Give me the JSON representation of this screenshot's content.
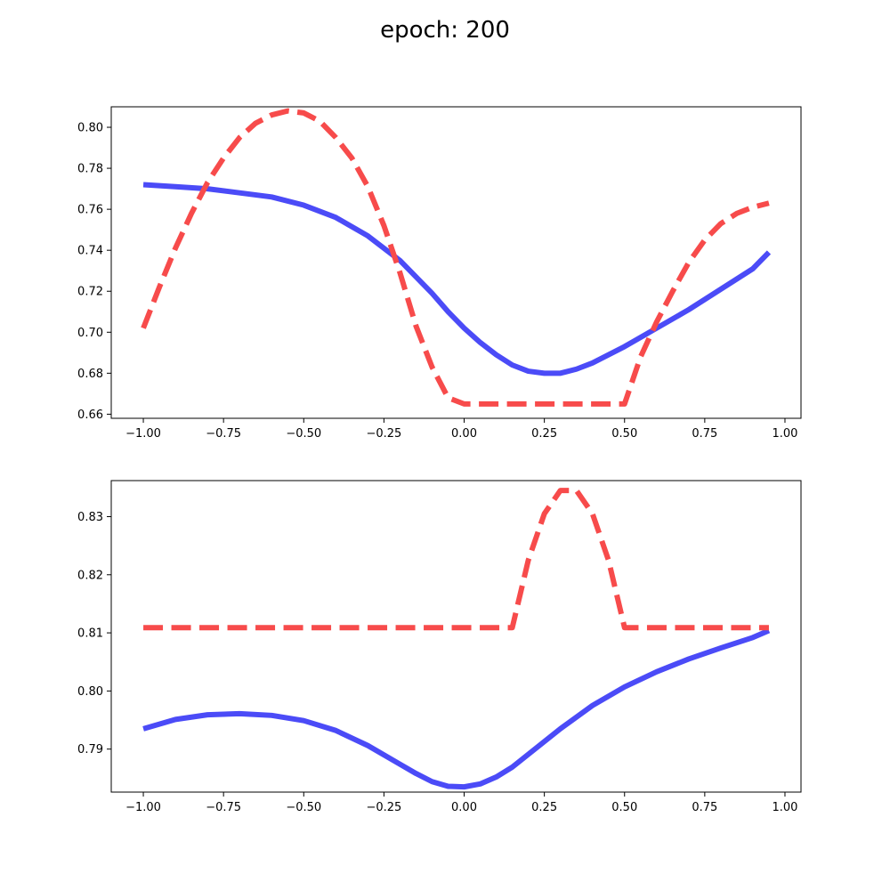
{
  "figure": {
    "title": "epoch: 200",
    "background": "#ffffff"
  },
  "chart_data": [
    {
      "type": "line",
      "title": "",
      "xlabel": "",
      "ylabel": "",
      "xlim": [
        -1.1,
        1.05
      ],
      "ylim": [
        0.658,
        0.81
      ],
      "x_ticks": [
        -1.0,
        -0.75,
        -0.5,
        -0.25,
        0.0,
        0.25,
        0.5,
        0.75,
        1.0
      ],
      "x_tick_labels": [
        "−1.00",
        "−0.75",
        "−0.50",
        "−0.25",
        "0.00",
        "0.25",
        "0.50",
        "0.75",
        "1.00"
      ],
      "y_ticks": [
        0.66,
        0.68,
        0.7,
        0.72,
        0.74,
        0.76,
        0.78,
        0.8
      ],
      "y_tick_labels": [
        "0.66",
        "0.68",
        "0.70",
        "0.72",
        "0.74",
        "0.76",
        "0.78",
        "0.80"
      ],
      "grid": false,
      "series": [
        {
          "style": "solid",
          "color": "#4b4bf7",
          "x": [
            -1.0,
            -0.9,
            -0.8,
            -0.7,
            -0.6,
            -0.5,
            -0.4,
            -0.3,
            -0.2,
            -0.1,
            -0.05,
            0.0,
            0.05,
            0.1,
            0.15,
            0.2,
            0.25,
            0.3,
            0.35,
            0.4,
            0.5,
            0.6,
            0.7,
            0.8,
            0.9,
            0.95
          ],
          "y": [
            0.772,
            0.771,
            0.77,
            0.768,
            0.766,
            0.762,
            0.756,
            0.747,
            0.735,
            0.719,
            0.71,
            0.702,
            0.695,
            0.689,
            0.684,
            0.681,
            0.68,
            0.68,
            0.682,
            0.685,
            0.693,
            0.702,
            0.711,
            0.721,
            0.731,
            0.739
          ]
        },
        {
          "style": "dashed",
          "color": "#f74b4b",
          "x": [
            -1.0,
            -0.95,
            -0.9,
            -0.85,
            -0.8,
            -0.75,
            -0.7,
            -0.65,
            -0.6,
            -0.55,
            -0.5,
            -0.45,
            -0.4,
            -0.35,
            -0.3,
            -0.25,
            -0.2,
            -0.15,
            -0.1,
            -0.05,
            0.0,
            0.05,
            0.1,
            0.2,
            0.3,
            0.4,
            0.5,
            0.55,
            0.6,
            0.65,
            0.7,
            0.75,
            0.8,
            0.85,
            0.9,
            0.95
          ],
          "y": [
            0.702,
            0.722,
            0.741,
            0.758,
            0.773,
            0.785,
            0.795,
            0.802,
            0.806,
            0.808,
            0.807,
            0.803,
            0.795,
            0.785,
            0.771,
            0.752,
            0.729,
            0.703,
            0.683,
            0.668,
            0.665,
            0.665,
            0.665,
            0.665,
            0.665,
            0.665,
            0.665,
            0.688,
            0.705,
            0.72,
            0.734,
            0.745,
            0.753,
            0.758,
            0.761,
            0.763
          ]
        }
      ]
    },
    {
      "type": "line",
      "title": "",
      "xlabel": "",
      "ylabel": "",
      "xlim": [
        -1.1,
        1.05
      ],
      "ylim": [
        0.7826,
        0.8362
      ],
      "x_ticks": [
        -1.0,
        -0.75,
        -0.5,
        -0.25,
        0.0,
        0.25,
        0.5,
        0.75,
        1.0
      ],
      "x_tick_labels": [
        "−1.00",
        "−0.75",
        "−0.50",
        "−0.25",
        "0.00",
        "0.25",
        "0.50",
        "0.75",
        "1.00"
      ],
      "y_ticks": [
        0.79,
        0.8,
        0.81,
        0.82,
        0.83
      ],
      "y_tick_labels": [
        "0.79",
        "0.80",
        "0.81",
        "0.82",
        "0.83"
      ],
      "grid": false,
      "series": [
        {
          "style": "solid",
          "color": "#4b4bf7",
          "x": [
            -1.0,
            -0.9,
            -0.8,
            -0.7,
            -0.6,
            -0.5,
            -0.4,
            -0.3,
            -0.2,
            -0.15,
            -0.1,
            -0.05,
            0.0,
            0.05,
            0.1,
            0.15,
            0.2,
            0.3,
            0.4,
            0.5,
            0.6,
            0.7,
            0.8,
            0.9,
            0.95
          ],
          "y": [
            0.7935,
            0.7951,
            0.7959,
            0.7961,
            0.7958,
            0.7949,
            0.7932,
            0.7906,
            0.7874,
            0.7858,
            0.7844,
            0.7836,
            0.7835,
            0.784,
            0.7852,
            0.7869,
            0.7891,
            0.7935,
            0.7975,
            0.8007,
            0.8033,
            0.8055,
            0.8074,
            0.8092,
            0.8104
          ]
        },
        {
          "style": "dashed",
          "color": "#f74b4b",
          "x": [
            -1.0,
            -0.5,
            0.0,
            0.15,
            0.2,
            0.25,
            0.3,
            0.35,
            0.4,
            0.45,
            0.5,
            0.75,
            0.95
          ],
          "y": [
            0.8109,
            0.8109,
            0.8109,
            0.8109,
            0.8225,
            0.8305,
            0.8345,
            0.8345,
            0.8305,
            0.8225,
            0.8109,
            0.8109,
            0.8109
          ]
        }
      ]
    }
  ]
}
